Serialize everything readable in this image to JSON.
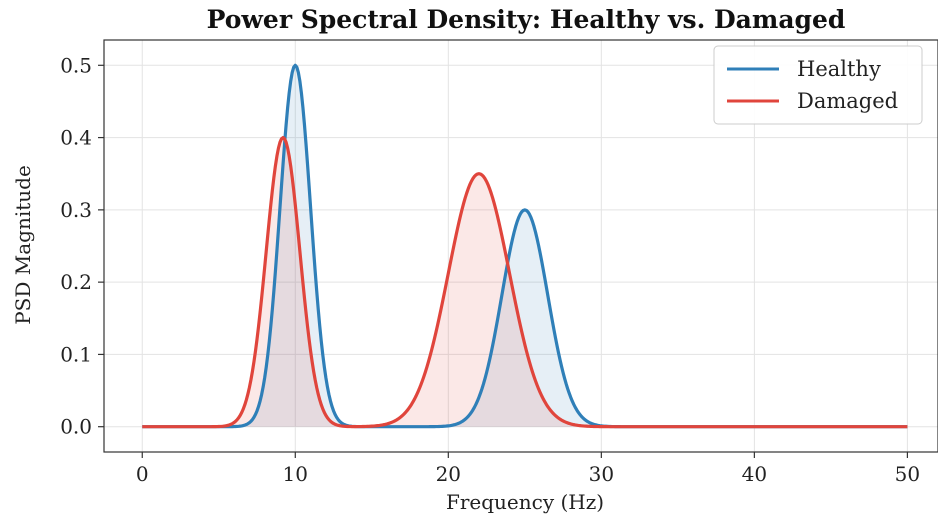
{
  "chart_data": {
    "type": "area",
    "title": "Power Spectral Density: Healthy vs. Damaged",
    "xlabel": "Frequency (Hz)",
    "ylabel": "PSD Magnitude",
    "xlim": [
      -2.5,
      52
    ],
    "ylim": [
      -0.035,
      0.535
    ],
    "xticks": [
      0,
      10,
      20,
      30,
      40,
      50
    ],
    "yticks": [
      0.0,
      0.1,
      0.2,
      0.3,
      0.4,
      0.5
    ],
    "xtick_labels": [
      "0",
      "10",
      "20",
      "30",
      "40",
      "50"
    ],
    "ytick_labels": [
      "0.0",
      "0.1",
      "0.2",
      "0.3",
      "0.4",
      "0.5"
    ],
    "grid": true,
    "legend_position": "top-right",
    "x_range": [
      0,
      50
    ],
    "series": [
      {
        "name": "Healthy",
        "color": "#2f7fb8",
        "peaks": [
          {
            "center": 10,
            "amplitude": 0.5,
            "sigma": 1.0
          },
          {
            "center": 25,
            "amplitude": 0.3,
            "sigma": 1.5
          }
        ]
      },
      {
        "name": "Damaged",
        "color": "#e0453c",
        "peaks": [
          {
            "center": 9.2,
            "amplitude": 0.4,
            "sigma": 1.1
          },
          {
            "center": 22,
            "amplitude": 0.35,
            "sigma": 2.0
          }
        ]
      }
    ]
  }
}
